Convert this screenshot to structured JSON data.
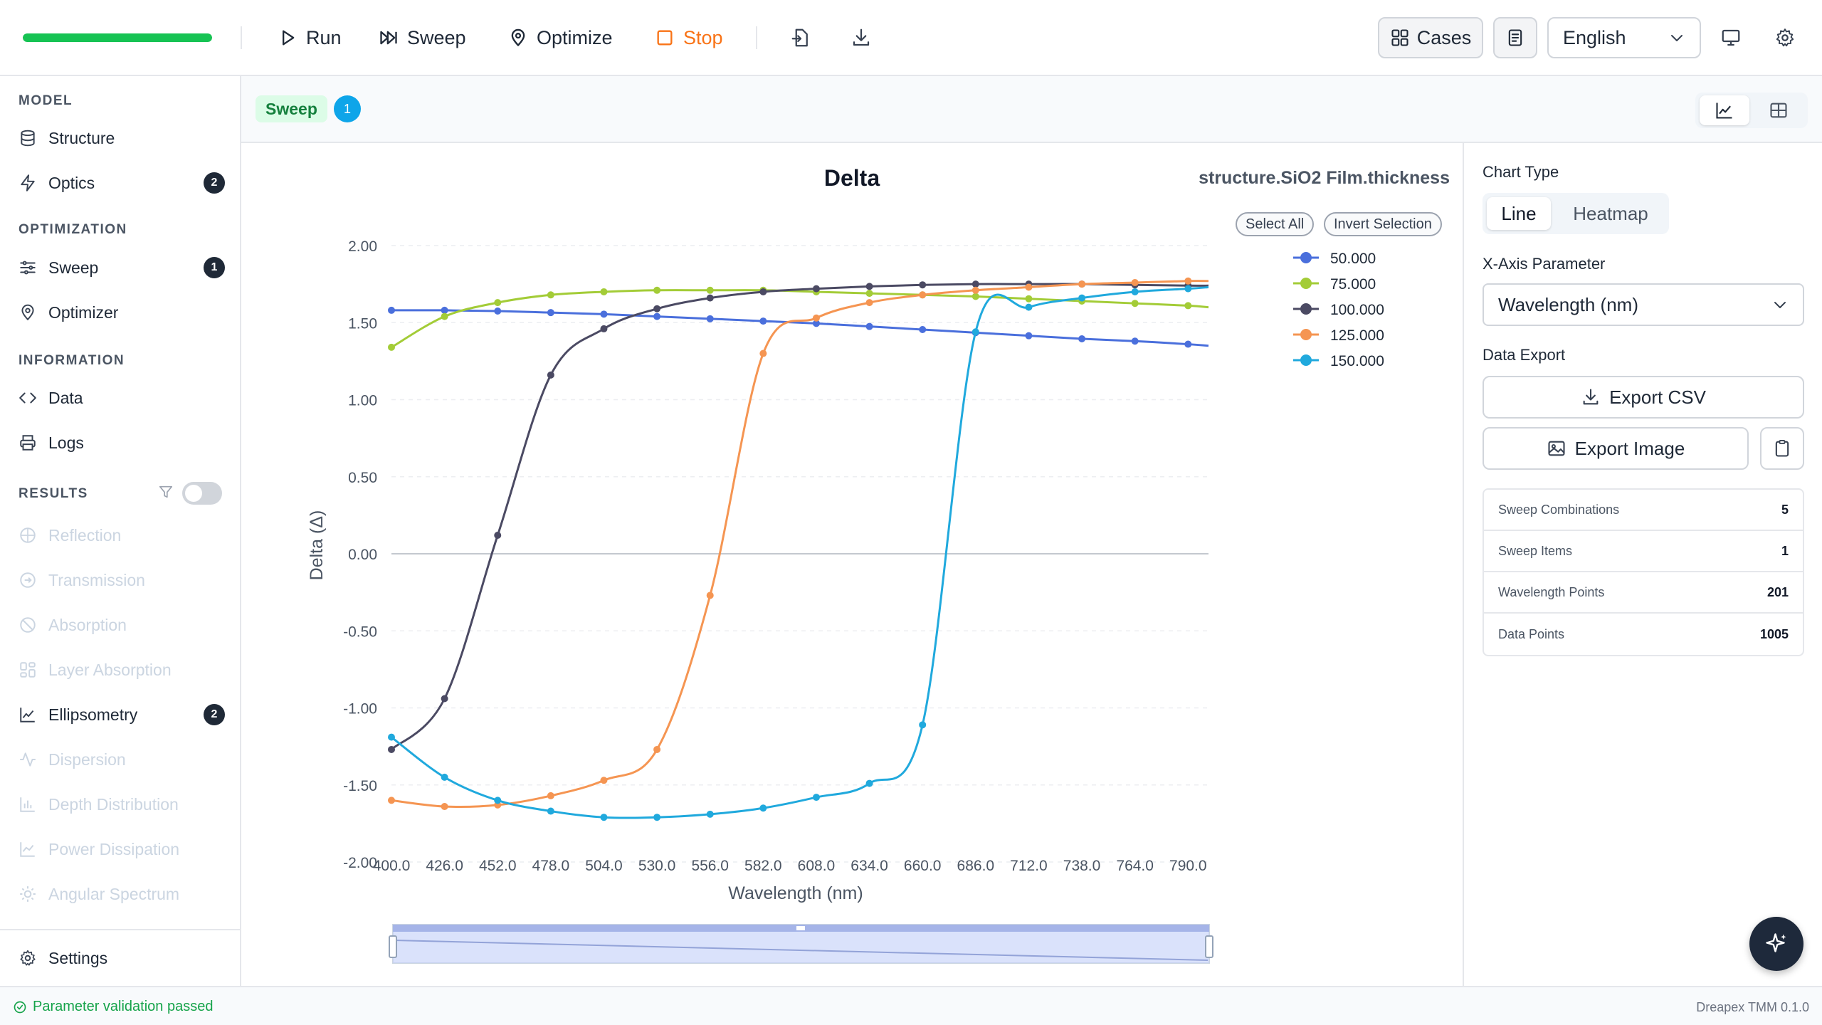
{
  "toolbar": {
    "progress_fraction": 1.0,
    "run_label": "Run",
    "sweep_label": "Sweep",
    "optimize_label": "Optimize",
    "stop_label": "Stop",
    "cases_label": "Cases",
    "language": "English"
  },
  "sidebar": {
    "sections": {
      "model": "MODEL",
      "optimization": "OPTIMIZATION",
      "information": "INFORMATION",
      "results": "RESULTS"
    },
    "items": {
      "structure": "Structure",
      "optics": "Optics",
      "optics_badge": "2",
      "sweep": "Sweep",
      "sweep_badge": "1",
      "optimizer": "Optimizer",
      "data": "Data",
      "logs": "Logs",
      "reflection": "Reflection",
      "transmission": "Transmission",
      "absorption": "Absorption",
      "layer_absorption": "Layer Absorption",
      "ellipsometry": "Ellipsometry",
      "ellipsometry_badge": "2",
      "dispersion": "Dispersion",
      "depth_distribution": "Depth Distribution",
      "power_dissipation": "Power Dissipation",
      "angular_spectrum": "Angular Spectrum",
      "settings": "Settings"
    }
  },
  "main": {
    "tag_label": "Sweep",
    "tag_count": "1",
    "select_all": "Select All",
    "invert_selection": "Invert Selection"
  },
  "chart_data": {
    "type": "line",
    "title": "Delta",
    "subtitle": "structure.SiO2 Film.thickness",
    "xlabel": "Wavelength (nm)",
    "ylabel": "Delta (Δ)",
    "xlim": [
      400,
      800
    ],
    "ylim": [
      -2,
      2
    ],
    "x_ticks": [
      "400.0",
      "426.0",
      "452.0",
      "478.0",
      "504.0",
      "530.0",
      "556.0",
      "582.0",
      "608.0",
      "634.0",
      "660.0",
      "686.0",
      "712.0",
      "738.0",
      "764.0",
      "790.0"
    ],
    "y_ticks": [
      "2.00",
      "1.50",
      "1.00",
      "0.50",
      "0.00",
      "-0.50",
      "-1.00",
      "-1.50",
      "-2.00"
    ],
    "legend_position": "top-right",
    "x": [
      400,
      426,
      452,
      478,
      504,
      530,
      556,
      582,
      608,
      634,
      660,
      686,
      712,
      738,
      764,
      790,
      800
    ],
    "series": [
      {
        "name": "50.000",
        "color": "#4a6fdc",
        "values": [
          1.58,
          1.58,
          1.575,
          1.565,
          1.555,
          1.54,
          1.525,
          1.51,
          1.495,
          1.475,
          1.455,
          1.435,
          1.415,
          1.395,
          1.38,
          1.36,
          1.35
        ]
      },
      {
        "name": "75.000",
        "color": "#a3cc37",
        "values": [
          1.34,
          1.54,
          1.63,
          1.68,
          1.7,
          1.71,
          1.71,
          1.71,
          1.7,
          1.69,
          1.68,
          1.67,
          1.655,
          1.64,
          1.625,
          1.61,
          1.6
        ]
      },
      {
        "name": "100.000",
        "color": "#4b4a63",
        "values": [
          -1.27,
          -0.94,
          0.12,
          1.16,
          1.46,
          1.59,
          1.66,
          1.7,
          1.72,
          1.735,
          1.745,
          1.75,
          1.75,
          1.75,
          1.745,
          1.74,
          1.74
        ]
      },
      {
        "name": "125.000",
        "color": "#f59552",
        "values": [
          -1.6,
          -1.64,
          -1.63,
          -1.57,
          -1.47,
          -1.27,
          -0.27,
          1.3,
          1.53,
          1.63,
          1.68,
          1.71,
          1.73,
          1.75,
          1.76,
          1.77,
          1.77
        ]
      },
      {
        "name": "150.000",
        "color": "#20a9dd",
        "values": [
          -1.19,
          -1.45,
          -1.6,
          -1.67,
          -1.71,
          -1.71,
          -1.69,
          -1.65,
          -1.58,
          -1.49,
          -1.11,
          1.44,
          1.6,
          1.66,
          1.7,
          1.72,
          1.73
        ]
      }
    ]
  },
  "right_panel": {
    "chart_type_label": "Chart Type",
    "line_label": "Line",
    "heatmap_label": "Heatmap",
    "x_axis_label": "X-Axis Parameter",
    "x_axis_value": "Wavelength (nm)",
    "data_export_label": "Data Export",
    "export_csv_label": "Export CSV",
    "export_image_label": "Export Image",
    "stats": [
      {
        "key": "Sweep Combinations",
        "value": "5"
      },
      {
        "key": "Sweep Items",
        "value": "1"
      },
      {
        "key": "Wavelength Points",
        "value": "201"
      },
      {
        "key": "Data Points",
        "value": "1005"
      }
    ]
  },
  "status": {
    "message": "Parameter validation passed",
    "version": "Dreapex TMM 0.1.0"
  }
}
